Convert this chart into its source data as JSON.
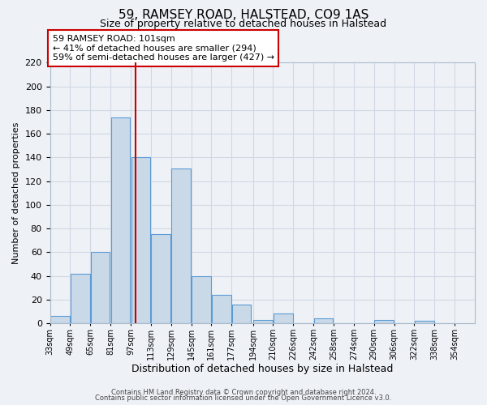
{
  "title": "59, RAMSEY ROAD, HALSTEAD, CO9 1AS",
  "subtitle": "Size of property relative to detached houses in Halstead",
  "xlabel": "Distribution of detached houses by size in Halstead",
  "ylabel": "Number of detached properties",
  "bar_left_edges": [
    33,
    49,
    65,
    81,
    97,
    113,
    129,
    145,
    161,
    177,
    194,
    210,
    226,
    242,
    258,
    274,
    290,
    306,
    322,
    338
  ],
  "bar_heights": [
    6,
    42,
    60,
    174,
    140,
    75,
    131,
    40,
    24,
    16,
    3,
    8,
    0,
    4,
    0,
    0,
    3,
    0,
    2,
    0
  ],
  "bin_width": 16,
  "bar_facecolor": "#c9d9e8",
  "bar_edgecolor": "#5b9bd5",
  "vline_x": 101,
  "vline_color": "#cc0000",
  "annotation_line1": "59 RAMSEY ROAD: 101sqm",
  "annotation_line2": "← 41% of detached houses are smaller (294)",
  "annotation_line3": "59% of semi-detached houses are larger (427) →",
  "annotation_box_facecolor": "white",
  "annotation_box_edgecolor": "#cc0000",
  "ylim": [
    0,
    220
  ],
  "yticks": [
    0,
    20,
    40,
    60,
    80,
    100,
    120,
    140,
    160,
    180,
    200,
    220
  ],
  "xtick_labels": [
    "33sqm",
    "49sqm",
    "65sqm",
    "81sqm",
    "97sqm",
    "113sqm",
    "129sqm",
    "145sqm",
    "161sqm",
    "177sqm",
    "194sqm",
    "210sqm",
    "226sqm",
    "242sqm",
    "258sqm",
    "274sqm",
    "290sqm",
    "306sqm",
    "322sqm",
    "338sqm",
    "354sqm"
  ],
  "xtick_positions": [
    33,
    49,
    65,
    81,
    97,
    113,
    129,
    145,
    161,
    177,
    194,
    210,
    226,
    242,
    258,
    274,
    290,
    306,
    322,
    338,
    354
  ],
  "grid_color": "#d0d8e4",
  "background_color": "#eef2f7",
  "footer_line1": "Contains HM Land Registry data © Crown copyright and database right 2024.",
  "footer_line2": "Contains public sector information licensed under the Open Government Licence v3.0."
}
